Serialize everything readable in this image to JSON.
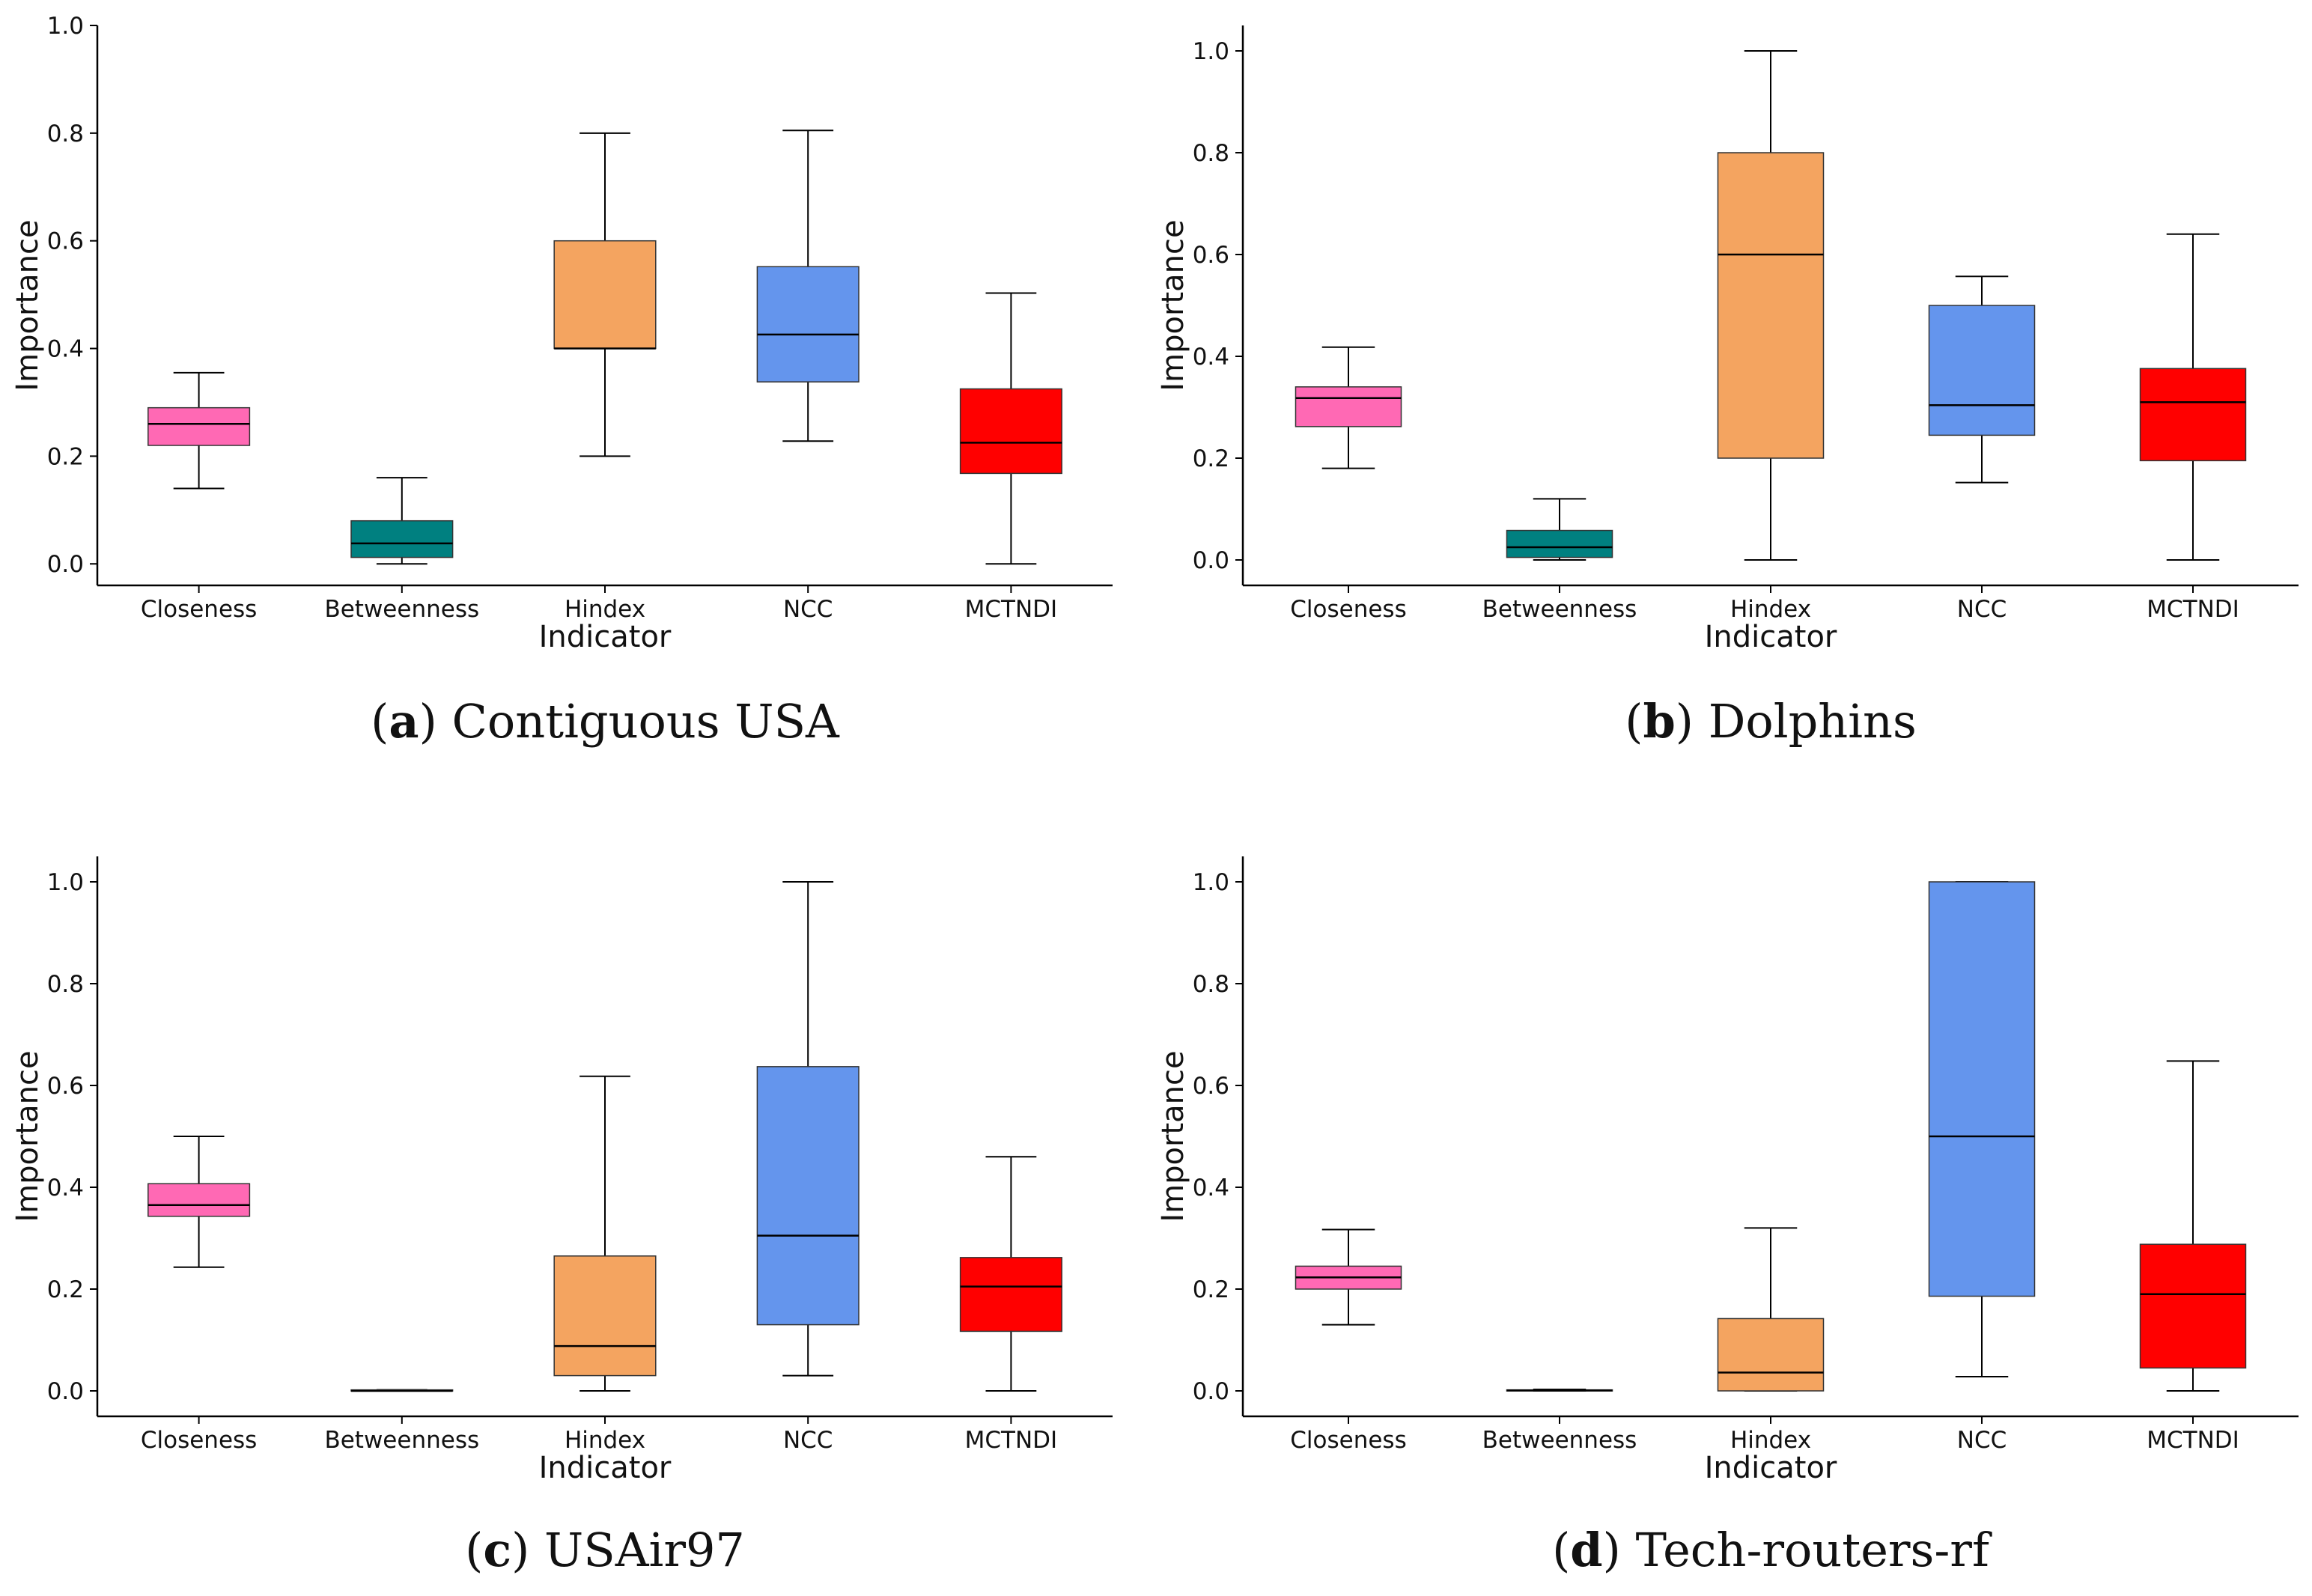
{
  "chart_data": [
    {
      "type": "box",
      "caption_letter": "a",
      "caption": "Contiguous USA",
      "xlabel": "Indicator",
      "ylabel": "Importance",
      "ylim": [
        -0.04,
        1.0
      ],
      "yticks": [
        "0.0",
        "0.2",
        "0.4",
        "0.6",
        "0.8",
        "1.0"
      ],
      "categories": [
        "Closeness",
        "Betweenness",
        "Hindex",
        "NCC",
        "MCTNDI"
      ],
      "colors": [
        "#ff69b4",
        "#008080",
        "#f4a460",
        "#6495ed",
        "#ff0000"
      ],
      "boxes": [
        {
          "min": 0.14,
          "q1": 0.22,
          "median": 0.26,
          "q3": 0.29,
          "max": 0.355
        },
        {
          "min": 0.0,
          "q1": 0.012,
          "median": 0.038,
          "q3": 0.08,
          "max": 0.16
        },
        {
          "min": 0.2,
          "q1": 0.4,
          "median": 0.4,
          "q3": 0.6,
          "max": 0.8
        },
        {
          "min": 0.228,
          "q1": 0.338,
          "median": 0.426,
          "q3": 0.552,
          "max": 0.805
        },
        {
          "min": 0.0,
          "q1": 0.168,
          "median": 0.225,
          "q3": 0.325,
          "max": 0.503
        }
      ]
    },
    {
      "type": "box",
      "caption_letter": "b",
      "caption": "Dolphins",
      "xlabel": "Indicator",
      "ylabel": "Importance",
      "ylim": [
        -0.05,
        1.05
      ],
      "yticks": [
        "0.0",
        "0.2",
        "0.4",
        "0.6",
        "0.8",
        "1.0"
      ],
      "categories": [
        "Closeness",
        "Betweenness",
        "Hindex",
        "NCC",
        "MCTNDI"
      ],
      "colors": [
        "#ff69b4",
        "#008080",
        "#f4a460",
        "#6495ed",
        "#ff0000"
      ],
      "boxes": [
        {
          "min": 0.18,
          "q1": 0.262,
          "median": 0.318,
          "q3": 0.34,
          "max": 0.418
        },
        {
          "min": 0.0,
          "q1": 0.005,
          "median": 0.025,
          "q3": 0.058,
          "max": 0.12
        },
        {
          "min": 0.0,
          "q1": 0.2,
          "median": 0.6,
          "q3": 0.8,
          "max": 1.0
        },
        {
          "min": 0.152,
          "q1": 0.245,
          "median": 0.304,
          "q3": 0.5,
          "max": 0.557
        },
        {
          "min": 0.0,
          "q1": 0.195,
          "median": 0.31,
          "q3": 0.376,
          "max": 0.64
        }
      ]
    },
    {
      "type": "box",
      "caption_letter": "c",
      "caption": "USAir97",
      "xlabel": "Indicator",
      "ylabel": "Importance",
      "ylim": [
        -0.05,
        1.05
      ],
      "yticks": [
        "0.0",
        "0.2",
        "0.4",
        "0.6",
        "0.8",
        "1.0"
      ],
      "categories": [
        "Closeness",
        "Betweenness",
        "Hindex",
        "NCC",
        "MCTNDI"
      ],
      "colors": [
        "#ff69b4",
        "#008080",
        "#f4a460",
        "#6495ed",
        "#ff0000"
      ],
      "boxes": [
        {
          "min": 0.243,
          "q1": 0.343,
          "median": 0.365,
          "q3": 0.407,
          "max": 0.5
        },
        {
          "min": 0.0,
          "q1": 0.0,
          "median": 0.0,
          "q3": 0.002,
          "max": 0.002
        },
        {
          "min": 0.0,
          "q1": 0.03,
          "median": 0.088,
          "q3": 0.265,
          "max": 0.618
        },
        {
          "min": 0.03,
          "q1": 0.13,
          "median": 0.305,
          "q3": 0.637,
          "max": 1.0
        },
        {
          "min": 0.0,
          "q1": 0.117,
          "median": 0.205,
          "q3": 0.262,
          "max": 0.46
        }
      ]
    },
    {
      "type": "box",
      "caption_letter": "d",
      "caption": "Tech-routers-rf",
      "xlabel": "Indicator",
      "ylabel": "Importance",
      "ylim": [
        -0.05,
        1.05
      ],
      "yticks": [
        "0.0",
        "0.2",
        "0.4",
        "0.6",
        "0.8",
        "1.0"
      ],
      "categories": [
        "Closeness",
        "Betweenness",
        "Hindex",
        "NCC",
        "MCTNDI"
      ],
      "colors": [
        "#ff69b4",
        "#008080",
        "#f4a460",
        "#6495ed",
        "#ff0000"
      ],
      "boxes": [
        {
          "min": 0.13,
          "q1": 0.2,
          "median": 0.223,
          "q3": 0.245,
          "max": 0.317
        },
        {
          "min": 0.0,
          "q1": 0.0,
          "median": 0.001,
          "q3": 0.002,
          "max": 0.003
        },
        {
          "min": 0.0,
          "q1": 0.0,
          "median": 0.036,
          "q3": 0.142,
          "max": 0.32
        },
        {
          "min": 0.028,
          "q1": 0.186,
          "median": 0.5,
          "q3": 1.0,
          "max": 1.0
        },
        {
          "min": 0.0,
          "q1": 0.045,
          "median": 0.19,
          "q3": 0.288,
          "max": 0.648
        }
      ]
    }
  ]
}
